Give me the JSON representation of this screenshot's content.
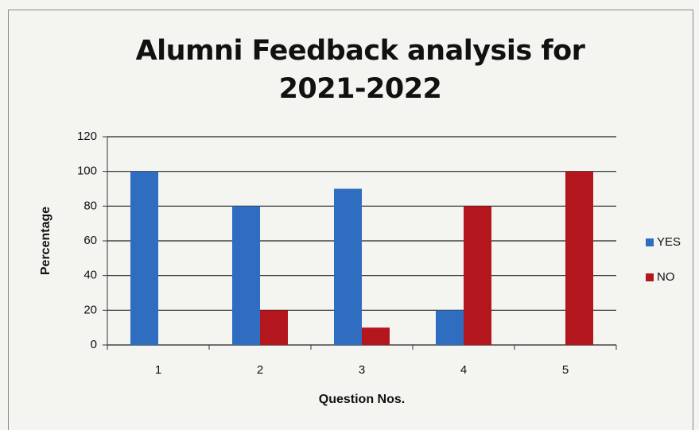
{
  "chart_data": {
    "type": "bar",
    "title": "Alumni Feedback analysis for 2021-2022",
    "x_label": "Question Nos.",
    "y_label": "Percentage",
    "categories": [
      "1",
      "2",
      "3",
      "4",
      "5"
    ],
    "series": [
      {
        "name": "YES",
        "color": "#2e6dbf",
        "values": [
          100,
          80,
          90,
          20,
          0
        ]
      },
      {
        "name": "NO",
        "color": "#b3161c",
        "values": [
          0,
          20,
          10,
          80,
          100
        ]
      }
    ],
    "ylim": [
      0,
      120
    ],
    "yticks": [
      0,
      20,
      40,
      60,
      80,
      100,
      120
    ],
    "grid": true,
    "legend": "right"
  }
}
